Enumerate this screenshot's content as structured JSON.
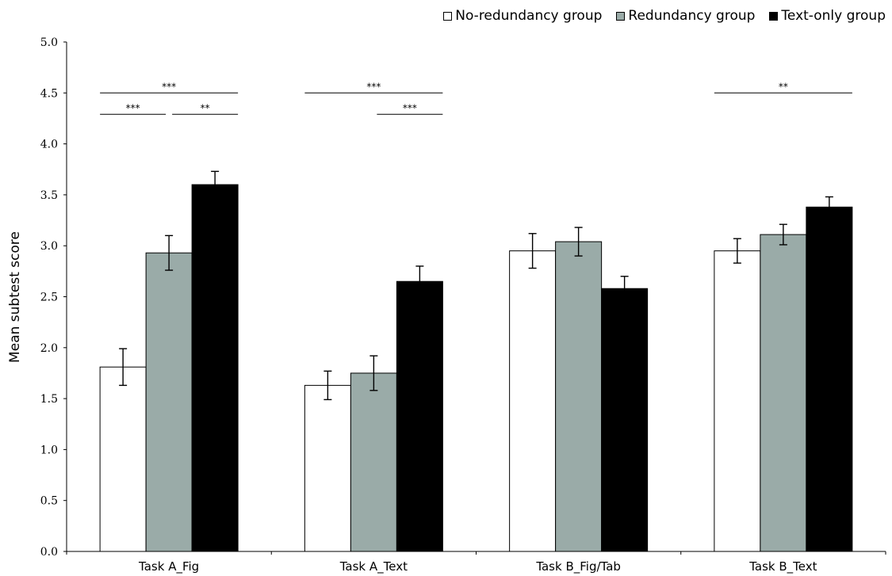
{
  "chart_data": {
    "type": "bar",
    "title": "",
    "xlabel": "",
    "ylabel": "Mean subtest score",
    "ylim": [
      0,
      5.0
    ],
    "yticks": [
      "0.0",
      "0.5",
      "1.0",
      "1.5",
      "2.0",
      "2.5",
      "3.0",
      "3.5",
      "4.0",
      "4.5",
      "5.0"
    ],
    "grid": false,
    "legend_position": "top-right",
    "categories": [
      "Task A_Fig",
      "Task A_Text",
      "Task B_Fig/Tab",
      "Task B_Text"
    ],
    "series": [
      {
        "name": "No-redundancy group",
        "color": "#ffffff",
        "values": [
          1.81,
          1.63,
          2.95,
          2.95
        ],
        "errors": [
          0.18,
          0.14,
          0.17,
          0.12
        ]
      },
      {
        "name": "Redundancy group",
        "color": "#9aaba8",
        "values": [
          2.93,
          1.75,
          3.04,
          3.11
        ],
        "errors": [
          0.17,
          0.17,
          0.14,
          0.1
        ]
      },
      {
        "name": "Text-only group",
        "color": "#000000",
        "values": [
          3.6,
          2.65,
          2.58,
          3.38
        ],
        "errors": [
          0.13,
          0.15,
          0.12,
          0.1
        ]
      }
    ],
    "annotations": [
      {
        "category": 0,
        "from": 0,
        "to": 2,
        "y": 4.5,
        "label": "***"
      },
      {
        "category": 0,
        "from": 0,
        "to": 1,
        "y": 4.29,
        "label": "***"
      },
      {
        "category": 0,
        "from": 1,
        "to": 2,
        "y": 4.29,
        "label": "**"
      },
      {
        "category": 1,
        "from": 0,
        "to": 2,
        "y": 4.5,
        "label": "***"
      },
      {
        "category": 1,
        "from": 1,
        "to": 2,
        "y": 4.29,
        "label": "***"
      },
      {
        "category": 3,
        "from": 0,
        "to": 2,
        "y": 4.5,
        "label": "**"
      }
    ]
  },
  "legend": {
    "items": [
      {
        "label": "No-redundancy group",
        "color": "#ffffff"
      },
      {
        "label": "Redundancy group",
        "color": "#9aaba8"
      },
      {
        "label": "Text-only group",
        "color": "#000000"
      }
    ]
  }
}
